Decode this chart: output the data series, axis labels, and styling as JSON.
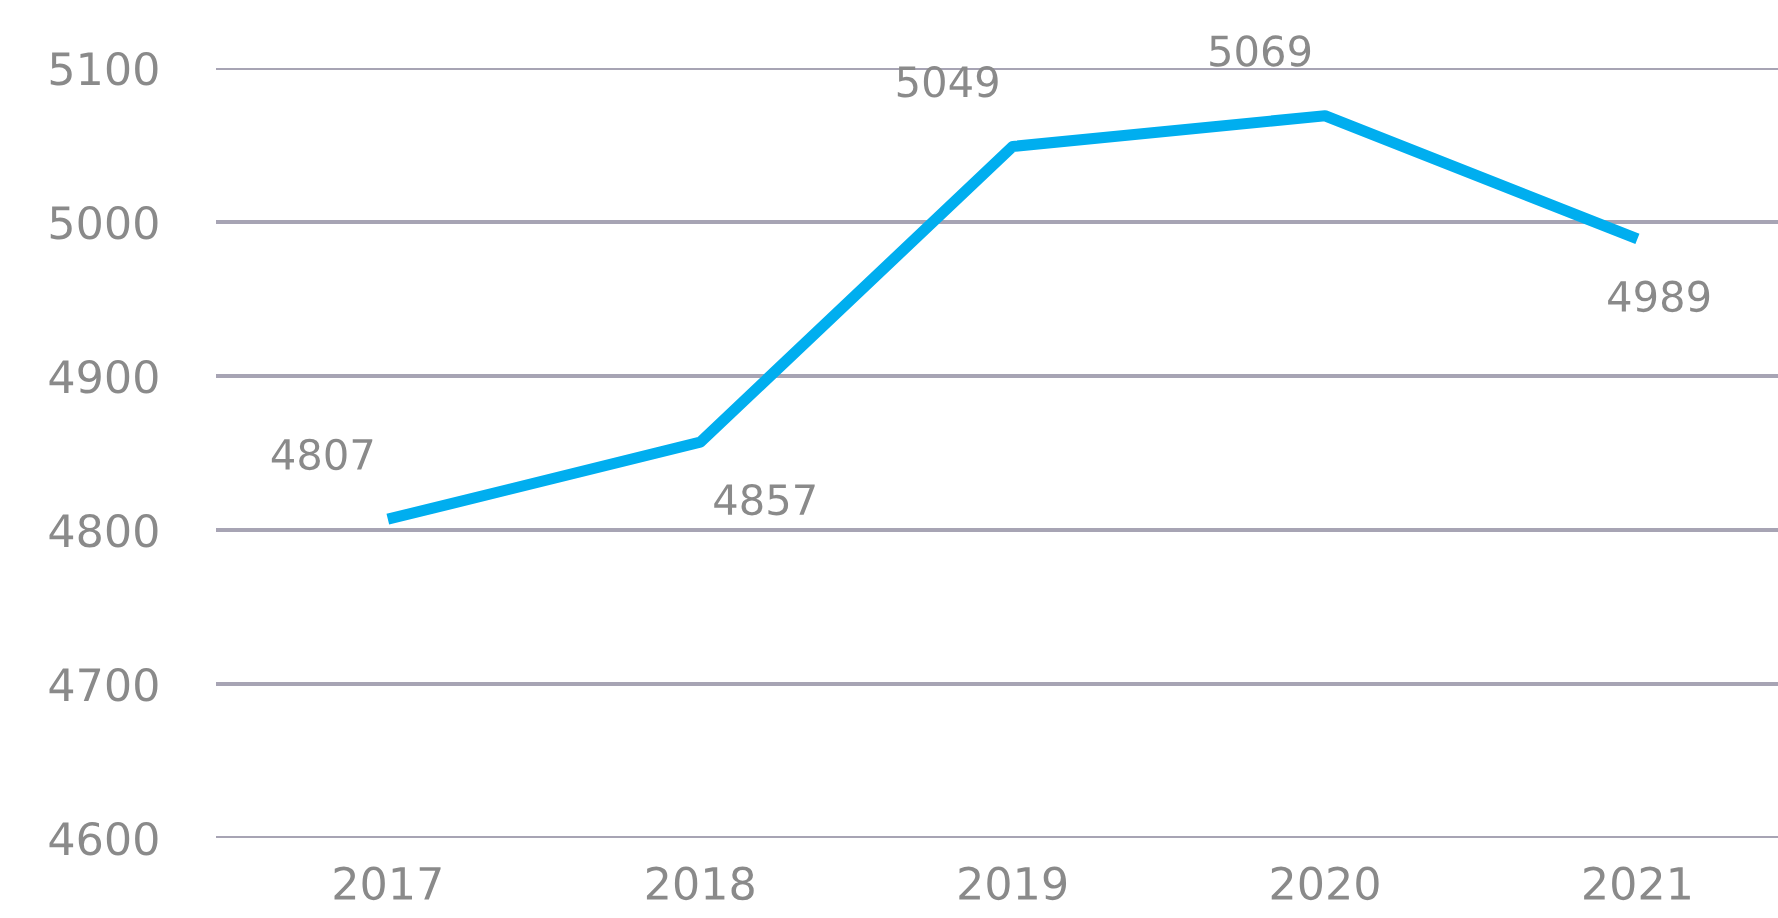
{
  "chart_data": {
    "type": "line",
    "categories": [
      "2017",
      "2018",
      "2019",
      "2020",
      "2021"
    ],
    "series": [
      {
        "color": "#00aeef",
        "values": [
          4807,
          4857,
          5049,
          5069,
          4989
        ]
      }
    ],
    "ylim": [
      4600,
      5100
    ],
    "yticks": [
      4600,
      4700,
      4800,
      4900,
      5000,
      5100
    ],
    "grid": "y",
    "data_labels": true,
    "legend": false,
    "marker": "none",
    "line_style": "solid"
  }
}
